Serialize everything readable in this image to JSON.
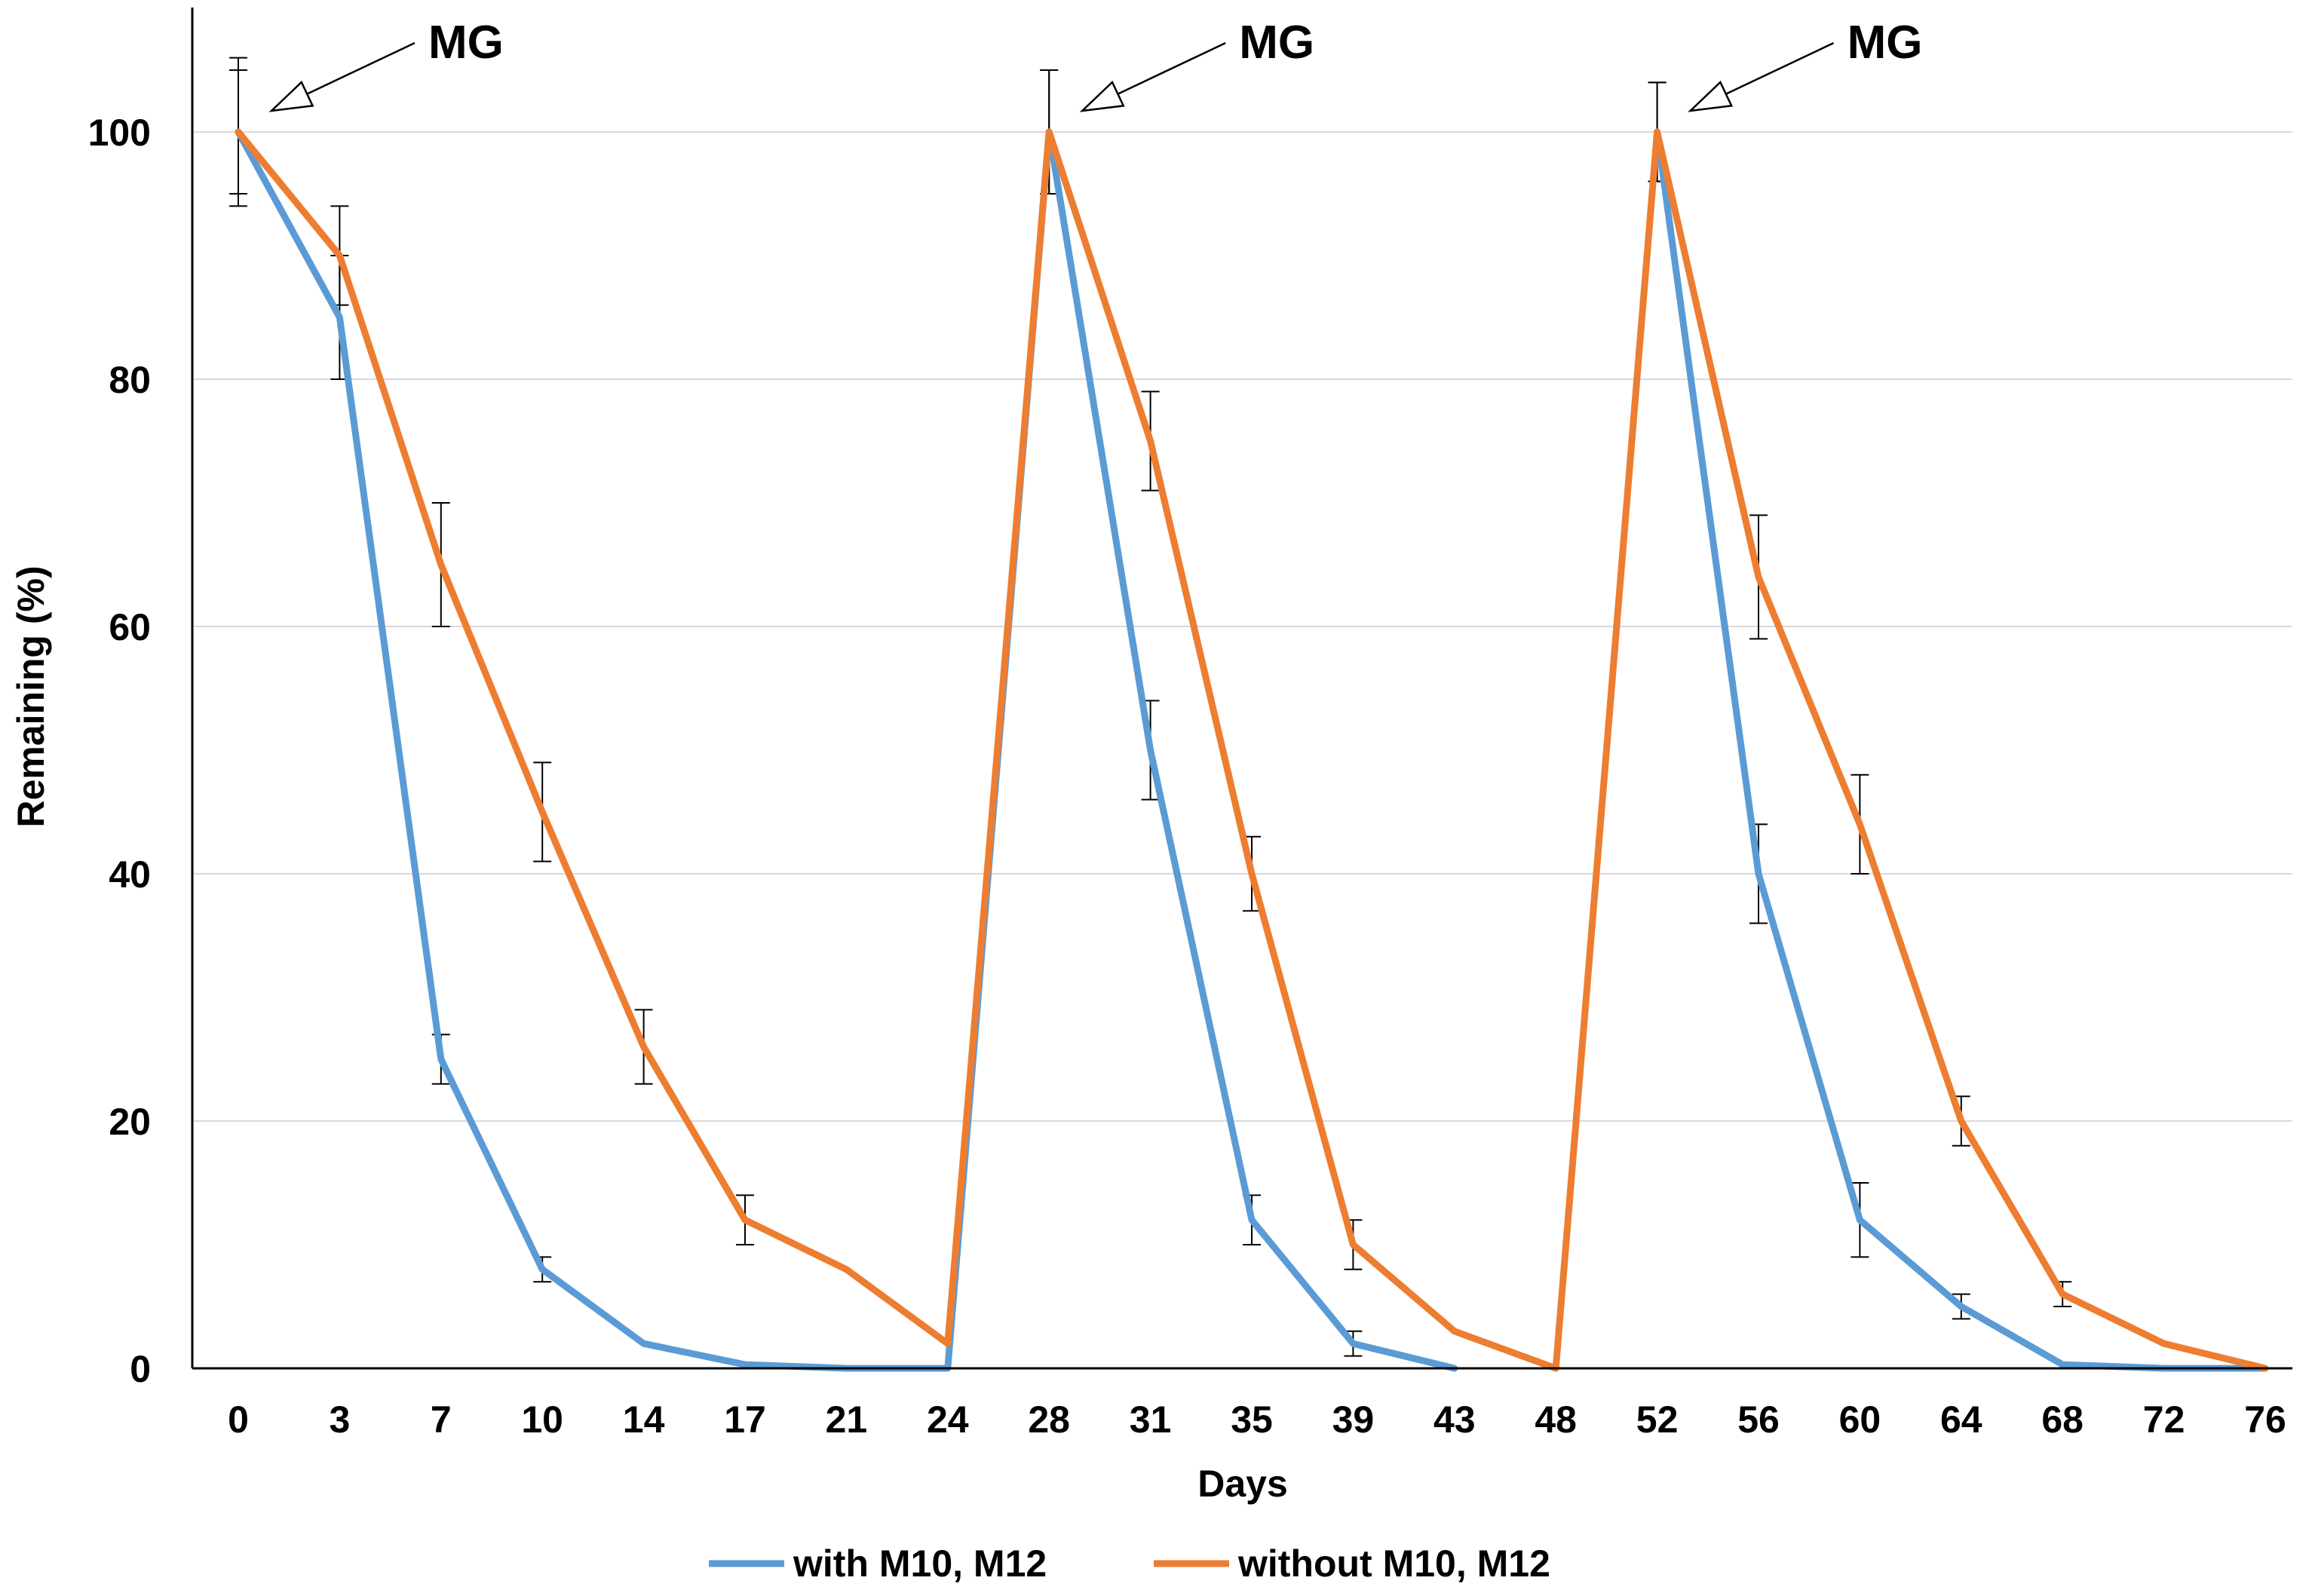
{
  "chart_data": {
    "type": "line",
    "title": "",
    "xlabel": "Days",
    "ylabel": "Remaining (%)",
    "ylim": [
      0,
      110
    ],
    "yticks": [
      0,
      20,
      40,
      60,
      80,
      100
    ],
    "grid": "horizontal",
    "legend_position": "bottom",
    "categories": [
      "0",
      "3",
      "7",
      "10",
      "14",
      "17",
      "21",
      "24",
      "28",
      "31",
      "35",
      "39",
      "43",
      "48",
      "52",
      "56",
      "60",
      "64",
      "68",
      "72",
      "76"
    ],
    "series": [
      {
        "name": "with M10, M12",
        "color": "#5B9BD5",
        "values": [
          100,
          85,
          25,
          8,
          2,
          0.3,
          0,
          0,
          100,
          50,
          12,
          2,
          0,
          null,
          100,
          40,
          12,
          5,
          0.3,
          0,
          0
        ],
        "errors": [
          6,
          5,
          2,
          1,
          0,
          0,
          0,
          0,
          5,
          4,
          2,
          1,
          0,
          null,
          4,
          4,
          3,
          1,
          0,
          0,
          0
        ]
      },
      {
        "name": "without M10, M12",
        "color": "#ED7D31",
        "values": [
          100,
          90,
          65,
          45,
          26,
          12,
          8,
          2,
          100,
          75,
          40,
          10,
          3,
          0,
          100,
          64,
          44,
          20,
          6,
          2,
          0
        ],
        "errors": [
          5,
          4,
          5,
          4,
          3,
          2,
          0,
          0,
          5,
          4,
          3,
          2,
          0,
          0,
          4,
          5,
          4,
          2,
          1,
          0,
          0
        ]
      }
    ],
    "annotations": [
      {
        "text": "MG",
        "x": "0",
        "y": 100
      },
      {
        "text": "MG",
        "x": "28",
        "y": 100
      },
      {
        "text": "MG",
        "x": "52",
        "y": 100
      }
    ]
  }
}
